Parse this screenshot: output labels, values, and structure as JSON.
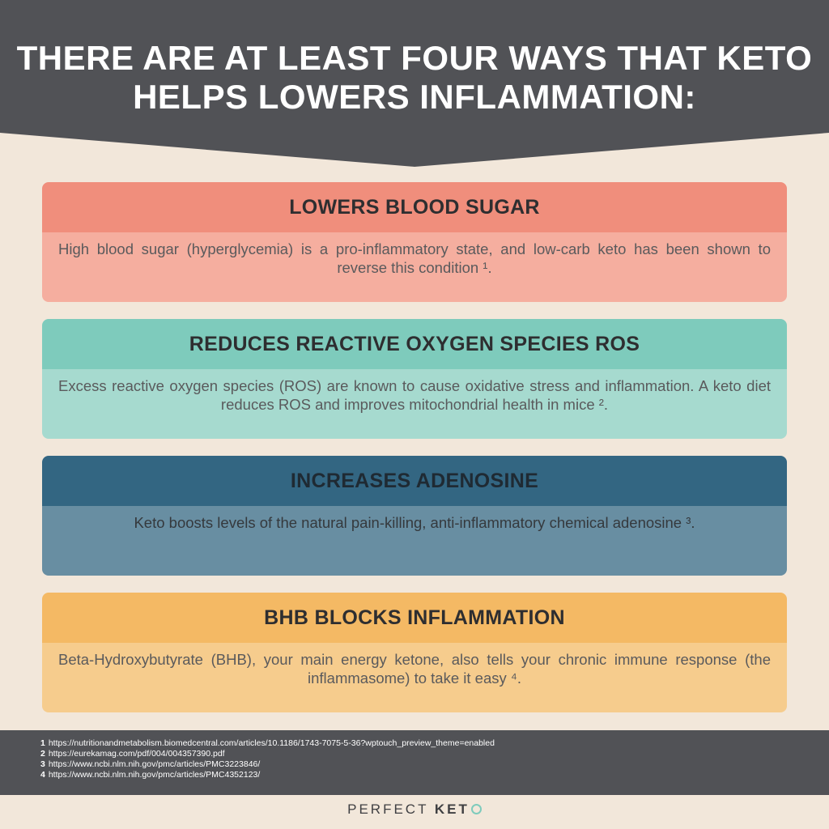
{
  "header": {
    "title": "THERE ARE AT LEAST FOUR WAYS THAT KETO HELPS LOWERS INFLAMMATION:"
  },
  "cards": [
    {
      "heading": "LOWERS BLOOD SUGAR",
      "text": "High blood sugar (hyperglycemia) is a pro-inflammatory state, and low-carb keto has been shown to reverse this condition ¹."
    },
    {
      "heading": "REDUCES REACTIVE OXYGEN SPECIES ROS",
      "text": "Excess reactive oxygen species (ROS) are known to cause oxidative stress and inflammation. A keto diet reduces ROS and improves mitochondrial health in mice ²."
    },
    {
      "heading": "INCREASES ADENOSINE",
      "text": "Keto boosts levels of the natural pain-killing, anti-inflammatory chemical adenosine ³."
    },
    {
      "heading": "BHB BLOCKS INFLAMMATION",
      "text": "Beta-Hydroxybutyrate (BHB), your main energy ketone, also tells your chronic immune response (the inflammasome) to take it easy ⁴."
    }
  ],
  "references": [
    {
      "num": "1",
      "url": "https://nutritionandmetabolism.biomedcentral.com/articles/10.1186/1743-7075-5-36?wptouch_preview_theme=enabled"
    },
    {
      "num": "2",
      "url": "https://eurekamag.com/pdf/004/004357390.pdf"
    },
    {
      "num": "3",
      "url": "https://www.ncbi.nlm.nih.gov/pmc/articles/PMC3223846/"
    },
    {
      "num": "4",
      "url": "https://www.ncbi.nlm.nih.gov/pmc/articles/PMC4352123/"
    }
  ],
  "brand": {
    "word1": "PERFECT",
    "word2": "KET"
  },
  "colors": {
    "background": "#f2e7da",
    "header": "#515256",
    "card1_head": "#f08e7c",
    "card2_head": "#7ecbbc",
    "card3_head": "#336682",
    "card4_head": "#f4b964"
  }
}
